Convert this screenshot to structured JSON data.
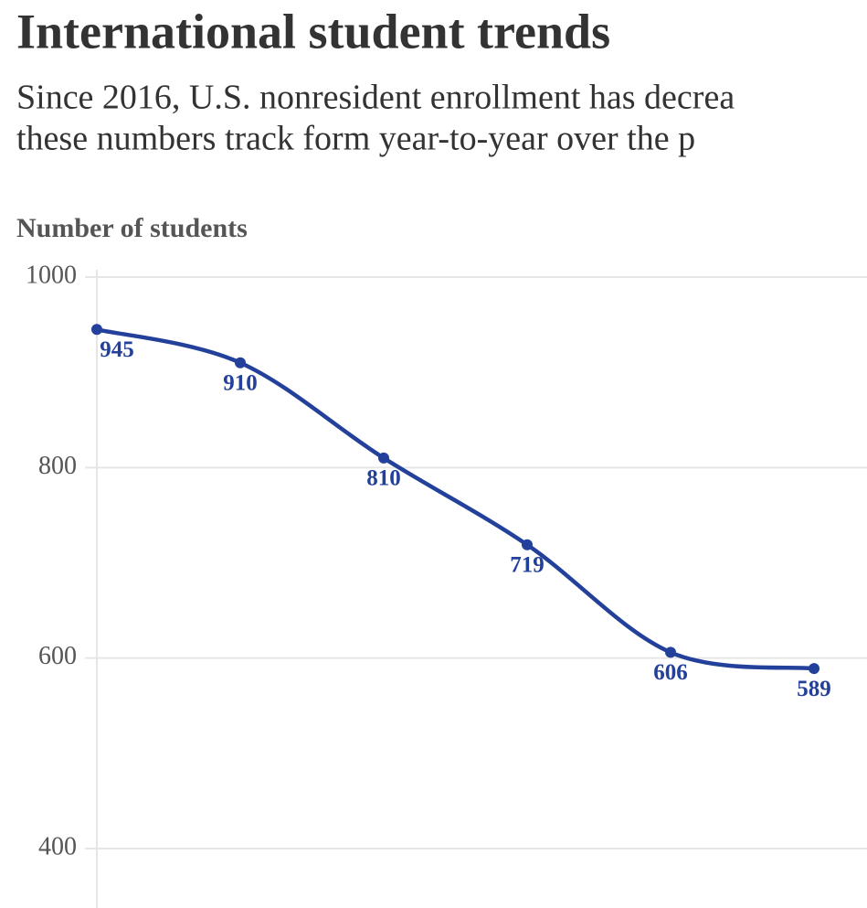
{
  "chart_data": {
    "type": "line",
    "title": "International student trends",
    "subtitle": [
      "Since 2016, U.S. nonresident enrollment has decrea",
      "these numbers track form year-to-year over the p"
    ],
    "y_axis_label": "Number of students",
    "categories": [
      null,
      null,
      null,
      null,
      null,
      null
    ],
    "series": [
      {
        "name": null,
        "color": "#23409a",
        "values": [
          945,
          910,
          810,
          719,
          606,
          589
        ]
      }
    ],
    "ylim": [
      350,
      1000
    ],
    "yticks": [
      400,
      600,
      800,
      1000
    ],
    "grid": true,
    "data_labels": true
  }
}
